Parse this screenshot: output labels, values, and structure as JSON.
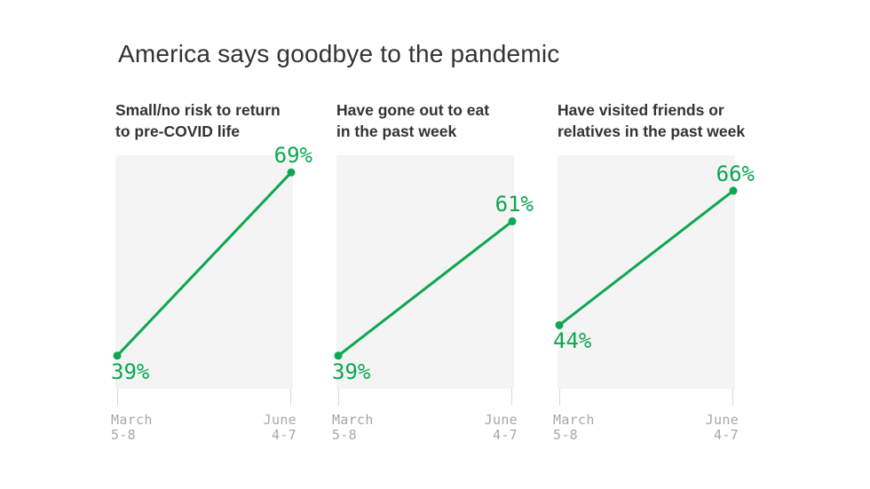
{
  "header": {
    "title": "America says goodbye to the pandemic"
  },
  "colors": {
    "accent_green": "#0da652",
    "page_bg": "#ffffff",
    "panel_bg": "#f4f4f4",
    "title_text": "#333333",
    "heading_text": "#333333",
    "tick_text": "#a7a7a7",
    "tick_line": "#dadada"
  },
  "chart_data": [
    {
      "type": "line",
      "title": "Small/no risk to return to pre-COVID life",
      "title_lines": [
        "Small/no risk to return",
        "to pre-COVID life"
      ],
      "categories": [
        "March 5-8",
        "June 4-7"
      ],
      "x_ticks": [
        [
          "March",
          "5-8"
        ],
        [
          "June",
          "4-7"
        ]
      ],
      "values": [
        39,
        69
      ],
      "value_labels": [
        "39%",
        "69%"
      ],
      "ylim": [
        33.6,
        71.8
      ],
      "grid": false,
      "legend": false
    },
    {
      "type": "line",
      "title": "Have gone out to eat in the past week",
      "title_lines": [
        "Have gone out to eat",
        "in the past week"
      ],
      "categories": [
        "March 5-8",
        "June 4-7"
      ],
      "x_ticks": [
        [
          "March",
          "5-8"
        ],
        [
          "June",
          "4-7"
        ]
      ],
      "values": [
        39,
        61
      ],
      "value_labels": [
        "39%",
        "61%"
      ],
      "ylim": [
        33.6,
        71.8
      ],
      "grid": false,
      "legend": false
    },
    {
      "type": "line",
      "title": "Have visited friends or relatives in the past week",
      "title_lines": [
        "Have visited friends or",
        "relatives in the past week"
      ],
      "categories": [
        "March 5-8",
        "June 4-7"
      ],
      "x_ticks": [
        [
          "March",
          "5-8"
        ],
        [
          "June",
          "4-7"
        ]
      ],
      "values": [
        44,
        66
      ],
      "value_labels": [
        "44%",
        "66%"
      ],
      "ylim": [
        33.6,
        71.8
      ],
      "grid": false,
      "legend": false
    }
  ]
}
